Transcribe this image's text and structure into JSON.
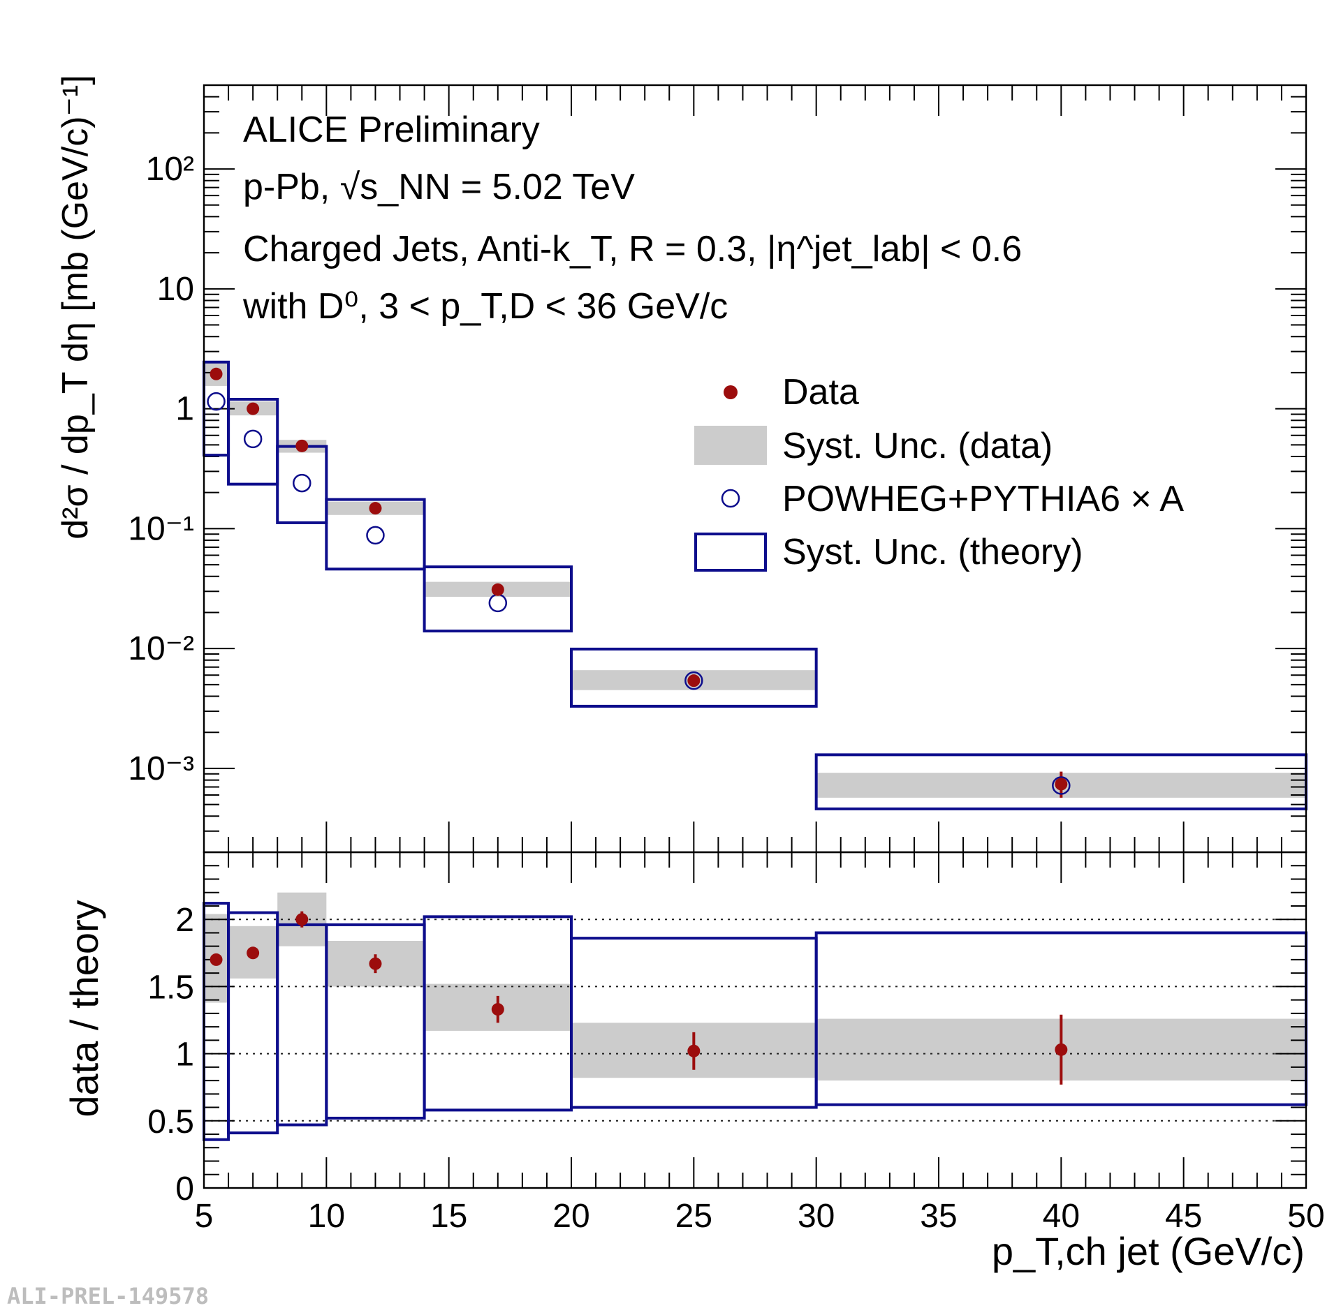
{
  "watermark": "ALI-PREL-149578",
  "colors": {
    "data": "#9c0d0d",
    "theory": "#0d0d8c",
    "syst_data": "#cccccc",
    "axis": "#000000"
  },
  "chart_data": [
    {
      "type": "scatter",
      "panel": "top",
      "yscale": "log",
      "xlim": [
        5,
        50
      ],
      "ylim": [
        0.0002,
        500
      ],
      "ylabel": "d²σ / dp_T dη [mb (GeV/c)⁻¹]",
      "ytick_labels": [
        "10⁻³",
        "10⁻²",
        "10⁻¹",
        "1",
        "10",
        "10²"
      ],
      "annotations": [
        "ALICE Preliminary",
        "p-Pb, √s_NN = 5.02 TeV",
        "Charged Jets, Anti-k_T, R = 0.3, |η^jet_lab| < 0.6",
        "with D⁰, 3 < p_T,D < 36 GeV/c"
      ],
      "legend": {
        "location": "upper-right",
        "entries": [
          "Data",
          "Syst. Unc. (data)",
          "POWHEG+PYTHIA6 × A",
          "Syst. Unc. (theory)"
        ]
      },
      "bins": [
        {
          "xlo": 5,
          "xhi": 6,
          "xc": 5.5,
          "data": 1.95,
          "syst_lo": 1.55,
          "syst_hi": 2.4,
          "theory": 1.15,
          "th_lo": 0.41,
          "th_hi": 2.45
        },
        {
          "xlo": 6,
          "xhi": 8,
          "xc": 7,
          "data": 1.0,
          "syst_lo": 0.88,
          "syst_hi": 1.15,
          "theory": 0.56,
          "th_lo": 0.235,
          "th_hi": 1.2
        },
        {
          "xlo": 8,
          "xhi": 10,
          "xc": 9,
          "data": 0.49,
          "syst_lo": 0.43,
          "syst_hi": 0.55,
          "theory": 0.24,
          "th_lo": 0.112,
          "th_hi": 0.485
        },
        {
          "xlo": 10,
          "xhi": 14,
          "xc": 12,
          "data": 0.148,
          "syst_lo": 0.13,
          "syst_hi": 0.168,
          "theory": 0.088,
          "th_lo": 0.046,
          "th_hi": 0.175
        },
        {
          "xlo": 14,
          "xhi": 20,
          "xc": 17,
          "data": 0.031,
          "syst_lo": 0.027,
          "syst_hi": 0.036,
          "theory": 0.024,
          "th_lo": 0.014,
          "th_hi": 0.048
        },
        {
          "xlo": 20,
          "xhi": 30,
          "xc": 25,
          "data": 0.0054,
          "syst_lo": 0.0045,
          "syst_hi": 0.0066,
          "theory": 0.0054,
          "th_lo": 0.0033,
          "th_hi": 0.0099
        },
        {
          "xlo": 30,
          "xhi": 50,
          "xc": 40,
          "data": 0.00074,
          "syst_lo": 0.00057,
          "syst_hi": 0.00092,
          "theory": 0.00072,
          "th_lo": 0.00046,
          "th_hi": 0.0013,
          "stat_lo": 0.00057,
          "stat_hi": 0.00094
        }
      ]
    },
    {
      "type": "scatter",
      "panel": "bottom",
      "xlim": [
        5,
        50
      ],
      "ylim": [
        0,
        2.5
      ],
      "xlabel": "p_T,ch jet (GeV/c)",
      "ylabel": "data / theory",
      "xtick_labels": [
        "5",
        "10",
        "15",
        "20",
        "25",
        "30",
        "35",
        "40",
        "45",
        "50"
      ],
      "ytick_labels": [
        "0",
        "0.5",
        "1",
        "1.5",
        "2"
      ],
      "gridlines_y": [
        0.5,
        1.0,
        1.5,
        2.0
      ],
      "bins": [
        {
          "xlo": 5,
          "xhi": 6,
          "xc": 5.5,
          "ratio": 1.7,
          "stat": 0.03,
          "syst_lo": 1.38,
          "syst_hi": 2.04,
          "th_lo": 0.36,
          "th_hi": 2.12
        },
        {
          "xlo": 6,
          "xhi": 8,
          "xc": 7,
          "ratio": 1.75,
          "stat": 0.03,
          "syst_lo": 1.56,
          "syst_hi": 1.95,
          "th_lo": 0.41,
          "th_hi": 2.05
        },
        {
          "xlo": 8,
          "xhi": 10,
          "xc": 9,
          "ratio": 2.0,
          "stat": 0.06,
          "syst_lo": 1.8,
          "syst_hi": 2.2,
          "th_lo": 0.47,
          "th_hi": 1.96
        },
        {
          "xlo": 10,
          "xhi": 14,
          "xc": 12,
          "ratio": 1.67,
          "stat": 0.07,
          "syst_lo": 1.5,
          "syst_hi": 1.84,
          "th_lo": 0.52,
          "th_hi": 1.96
        },
        {
          "xlo": 14,
          "xhi": 20,
          "xc": 17,
          "ratio": 1.33,
          "stat": 0.1,
          "syst_lo": 1.17,
          "syst_hi": 1.52,
          "th_lo": 0.58,
          "th_hi": 2.02
        },
        {
          "xlo": 20,
          "xhi": 30,
          "xc": 25,
          "ratio": 1.02,
          "stat": 0.14,
          "syst_lo": 0.82,
          "syst_hi": 1.23,
          "th_lo": 0.6,
          "th_hi": 1.86
        },
        {
          "xlo": 30,
          "xhi": 50,
          "xc": 40,
          "ratio": 1.03,
          "stat": 0.26,
          "syst_lo": 0.8,
          "syst_hi": 1.26,
          "th_lo": 0.62,
          "th_hi": 1.9
        }
      ]
    }
  ]
}
